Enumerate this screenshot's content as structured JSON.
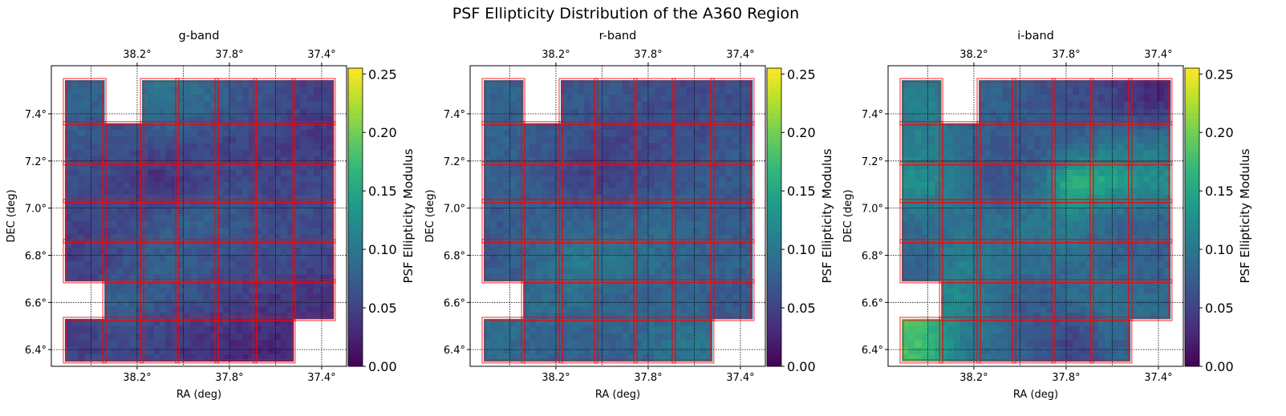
{
  "chart_data": {
    "type": "heatmap",
    "title": "PSF Ellipticity Distribution of the A360 Region",
    "xlabel": "RA (deg)",
    "ylabel": "DEC (deg)",
    "colorbar_label": "PSF Ellipticity Modulus",
    "colormap": "viridis",
    "clim": [
      0,
      0.255
    ],
    "colorbar_ticks": [
      0,
      0.05,
      0.1,
      0.15,
      0.2,
      0.25
    ],
    "colorbar_tick_labels": [
      "0.00",
      "0.05",
      "0.10",
      "0.15",
      "0.20",
      "0.25"
    ],
    "xlim": [
      38.572,
      37.292
    ],
    "ylim": [
      6.329,
      7.604
    ],
    "xticks": [
      38.2,
      37.8,
      37.4
    ],
    "xtick_labels": [
      "38.2°",
      "37.8°",
      "37.4°"
    ],
    "yticks": [
      6.4,
      6.6,
      6.8,
      7.0,
      7.2,
      7.4
    ],
    "ytick_labels": [
      "6.4°",
      "6.6°",
      "6.8°",
      "7.0°",
      "7.2°",
      "7.4°"
    ],
    "grid": true,
    "grid_ra": [
      38.4,
      38.2,
      38.0,
      37.8,
      37.6,
      37.4
    ],
    "grid_dec": [
      6.4,
      6.6,
      6.8,
      7.0,
      7.2,
      7.4
    ],
    "tile_outline_color": "#ff0000",
    "tiles_ra_edges": [
      38.513,
      38.342,
      38.179,
      38.026,
      37.855,
      37.689,
      37.522,
      37.348
    ],
    "tiles_dec_edges": [
      7.543,
      7.36,
      7.19,
      7.03,
      6.86,
      6.69,
      6.53,
      6.35
    ],
    "coverage": [
      [
        1,
        0,
        1,
        1,
        1,
        1,
        1
      ],
      [
        1,
        1,
        1,
        1,
        1,
        1,
        1
      ],
      [
        1,
        1,
        1,
        1,
        1,
        1,
        1
      ],
      [
        1,
        1,
        1,
        1,
        1,
        1,
        1
      ],
      [
        1,
        1,
        1,
        1,
        1,
        1,
        1
      ],
      [
        0,
        1,
        1,
        1,
        1,
        1,
        1
      ],
      [
        1,
        1,
        1,
        1,
        1,
        1,
        0
      ]
    ],
    "panels": [
      {
        "title": "g-band",
        "values": [
          [
            0.08,
            null,
            0.1,
            0.09,
            0.07,
            0.06,
            0.05
          ],
          [
            0.07,
            0.06,
            0.06,
            0.06,
            0.05,
            0.05,
            0.04
          ],
          [
            0.06,
            0.05,
            0.03,
            0.05,
            0.06,
            0.05,
            0.06
          ],
          [
            0.05,
            0.06,
            0.07,
            0.08,
            0.07,
            0.06,
            0.06
          ],
          [
            0.05,
            0.06,
            0.08,
            0.07,
            0.06,
            0.06,
            0.05
          ],
          [
            null,
            0.08,
            0.07,
            0.06,
            0.05,
            0.04,
            0.04
          ],
          [
            0.05,
            0.06,
            0.05,
            0.04,
            0.03,
            0.03,
            null
          ]
        ]
      },
      {
        "title": "r-band",
        "values": [
          [
            0.08,
            null,
            0.07,
            0.07,
            0.06,
            0.06,
            0.06
          ],
          [
            0.08,
            0.07,
            0.06,
            0.05,
            0.06,
            0.06,
            0.07
          ],
          [
            0.08,
            0.07,
            0.05,
            0.05,
            0.06,
            0.07,
            0.07
          ],
          [
            0.07,
            0.08,
            0.08,
            0.08,
            0.09,
            0.08,
            0.07
          ],
          [
            0.07,
            0.09,
            0.11,
            0.1,
            0.09,
            0.08,
            0.08
          ],
          [
            null,
            0.09,
            0.09,
            0.08,
            0.08,
            0.08,
            0.07
          ],
          [
            0.09,
            0.08,
            0.08,
            0.08,
            0.09,
            0.1,
            null
          ]
        ]
      },
      {
        "title": "i-band",
        "values": [
          [
            0.11,
            null,
            0.08,
            0.07,
            0.06,
            0.05,
            0.03
          ],
          [
            0.11,
            0.09,
            0.07,
            0.07,
            0.08,
            0.1,
            0.1
          ],
          [
            0.13,
            0.1,
            0.06,
            0.08,
            0.17,
            0.15,
            0.13
          ],
          [
            0.09,
            0.1,
            0.09,
            0.1,
            0.11,
            0.08,
            0.08
          ],
          [
            0.08,
            0.11,
            0.1,
            0.09,
            0.09,
            0.08,
            0.08
          ],
          [
            null,
            0.12,
            0.09,
            0.07,
            0.09,
            0.1,
            0.09
          ],
          [
            0.18,
            0.11,
            0.09,
            0.07,
            0.05,
            0.08,
            null
          ]
        ]
      }
    ]
  }
}
